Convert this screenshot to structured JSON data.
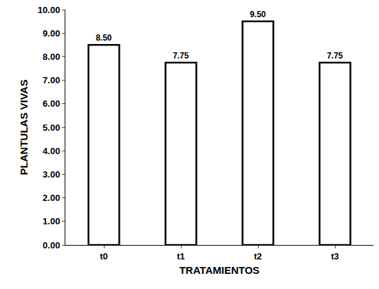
{
  "chart_data": {
    "type": "bar",
    "x_label": "TRATAMIENTOS",
    "y_label": "PLANTULAS VIVAS",
    "categories": [
      "t0",
      "t1",
      "t2",
      "t3"
    ],
    "values": [
      8.5,
      7.75,
      9.5,
      7.75
    ],
    "value_labels": [
      "8.50",
      "7.75",
      "9.50",
      "7.75"
    ],
    "data_labels": true,
    "color": "#ffffff",
    "ylim": [
      0,
      10
    ],
    "yticks": [
      {
        "value": 0,
        "label": "0.00"
      },
      {
        "value": 1,
        "label": "1.00"
      },
      {
        "value": 2,
        "label": "2.00"
      },
      {
        "value": 3,
        "label": "3.00"
      },
      {
        "value": 4,
        "label": "4.00"
      },
      {
        "value": 5,
        "label": "5.00"
      },
      {
        "value": 6,
        "label": "6.00"
      },
      {
        "value": 7,
        "label": "7.00"
      },
      {
        "value": 8,
        "label": "8.00"
      },
      {
        "value": 9,
        "label": "9.00"
      },
      {
        "value": 10,
        "label": "10.00"
      }
    ],
    "grid": false
  }
}
